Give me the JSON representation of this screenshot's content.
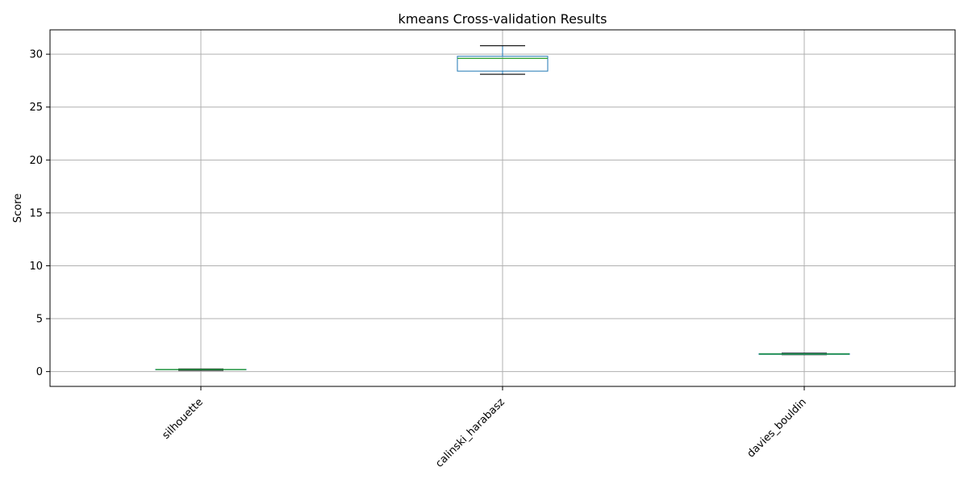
{
  "chart_data": {
    "type": "box",
    "title": "kmeans Cross-validation Results",
    "xlabel": "",
    "ylabel": "Score",
    "categories": [
      "silhouette",
      "calinski_harabasz",
      "davies_bouldin"
    ],
    "yticks": [
      0,
      5,
      10,
      15,
      20,
      25,
      30
    ],
    "ylim": [
      -1.4,
      32.3
    ],
    "grid": true,
    "boxes": [
      {
        "category": "silhouette",
        "whislo": 0.12,
        "q1": 0.17,
        "med": 0.19,
        "q3": 0.21,
        "whishi": 0.24
      },
      {
        "category": "calinski_harabasz",
        "whislo": 28.1,
        "q1": 28.4,
        "med": 29.6,
        "q3": 29.8,
        "whishi": 30.8
      },
      {
        "category": "davies_bouldin",
        "whislo": 1.6,
        "q1": 1.62,
        "med": 1.66,
        "q3": 1.7,
        "whishi": 1.74
      }
    ],
    "colors": {
      "box": "#1f77b4",
      "median": "#2ca02c",
      "whisker": "#1f77b4",
      "cap": "#000000",
      "grid": "#b0b0b0",
      "axis": "#000000"
    }
  }
}
